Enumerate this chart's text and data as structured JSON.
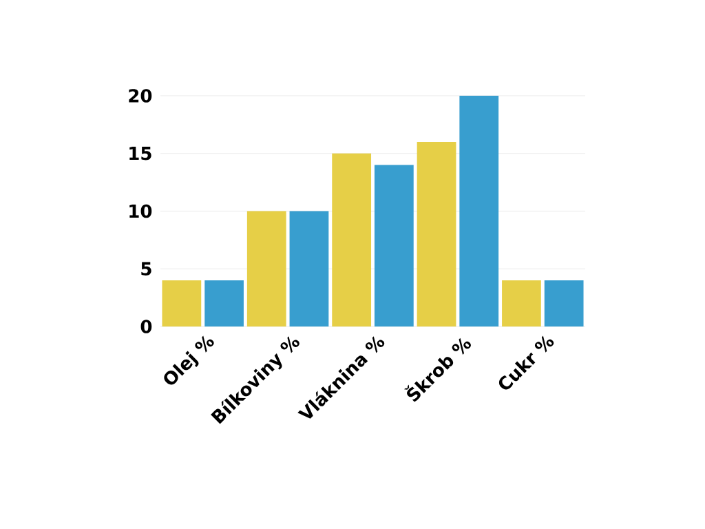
{
  "chart_data": {
    "type": "bar",
    "categories": [
      "Olej %",
      "Bílkoviny %",
      "Vláknina %",
      "Škrob %",
      "Cukr %"
    ],
    "series": [
      {
        "color": "#e6cf47",
        "values": [
          4,
          10,
          15,
          16,
          4
        ]
      },
      {
        "color": "#389ecf",
        "values": [
          4,
          10,
          14,
          20,
          4
        ]
      }
    ],
    "ylim": [
      0,
      20
    ],
    "yticks": [
      0,
      5,
      10,
      15,
      20
    ],
    "grid": "y"
  }
}
